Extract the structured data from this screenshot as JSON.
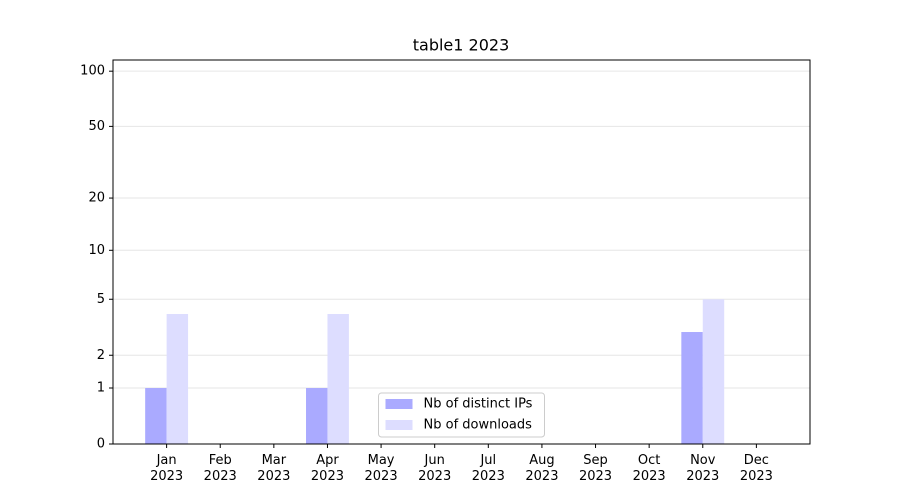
{
  "chart_data": {
    "type": "bar",
    "title": "table1 2023",
    "categories": [
      "Jan\n2023",
      "Feb\n2023",
      "Mar\n2023",
      "Apr\n2023",
      "May\n2023",
      "Jun\n2023",
      "Jul\n2023",
      "Aug\n2023",
      "Sep\n2023",
      "Oct\n2023",
      "Nov\n2023",
      "Dec\n2023"
    ],
    "series": [
      {
        "name": "Nb of distinct IPs",
        "color": "#aaaaff",
        "values": [
          1,
          0,
          0,
          1,
          0,
          0,
          0,
          0,
          0,
          0,
          3,
          0
        ]
      },
      {
        "name": "Nb of downloads",
        "color": "#ddddff",
        "values": [
          4,
          0,
          0,
          4,
          0,
          0,
          0,
          0,
          0,
          0,
          5,
          0
        ]
      }
    ],
    "yscale": "log1p",
    "ylim": [
      0,
      115
    ],
    "yticks": [
      0,
      1,
      2,
      5,
      10,
      20,
      50,
      100
    ],
    "grid": true,
    "legend": "lower center"
  }
}
